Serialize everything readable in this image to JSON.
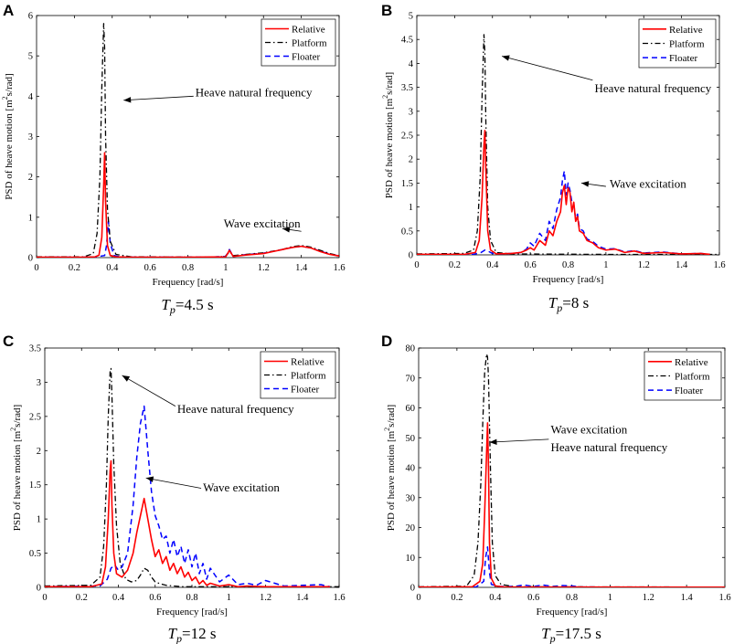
{
  "series_styles": {
    "Relative": {
      "color": "#ff0000",
      "dash": "",
      "width": 1.6
    },
    "Platform": {
      "color": "#000000",
      "dash": "6,3,1.5,3",
      "width": 1.3
    },
    "Floater": {
      "color": "#0000ff",
      "dash": "6,4",
      "width": 1.5
    }
  },
  "chart_data": [
    {
      "panel": "A",
      "type": "line",
      "caption_symbol": "T",
      "caption_sub": "p",
      "caption_value": "=4.5 s",
      "xlabel": "Frequency [rad/s]",
      "ylabel_pre": "PSD of heave motion [m",
      "ylabel_sup": "2",
      "ylabel_post": "s/rad]",
      "xlim": [
        0,
        1.6
      ],
      "ylim": [
        0,
        6
      ],
      "xticks": [
        0,
        0.2,
        0.4,
        0.6,
        0.8,
        1,
        1.2,
        1.4,
        1.6
      ],
      "yticks": [
        0,
        1,
        2,
        3,
        4,
        5,
        6
      ],
      "legend": [
        "Relative",
        "Platform",
        "Floater"
      ],
      "annotations": [
        {
          "text": "Heave natural frequency",
          "tx": 0.84,
          "ty": 4.0,
          "ax": 0.83,
          "ay": 4.0,
          "hx": 0.46,
          "hy": 3.9
        },
        {
          "text": "Wave excitation",
          "tx": 0.99,
          "ty": 0.75,
          "ax": 1.4,
          "ay": 0.65,
          "hx": 1.3,
          "hy": 0.72
        }
      ],
      "series": [
        {
          "name": "Relative",
          "x": [
            0,
            0.25,
            0.31,
            0.33,
            0.345,
            0.355,
            0.36,
            0.365,
            0.375,
            0.39,
            0.42,
            0.5,
            0.8,
            1.0,
            1.02,
            1.04,
            1.1,
            1.2,
            1.25,
            1.3,
            1.35,
            1.4,
            1.45,
            1.5,
            1.55,
            1.6
          ],
          "values": [
            0.01,
            0.01,
            0.02,
            0.06,
            0.5,
            1.8,
            2.6,
            1.4,
            0.3,
            0.05,
            0.02,
            0.01,
            0.01,
            0.02,
            0.18,
            0.03,
            0.06,
            0.1,
            0.15,
            0.2,
            0.25,
            0.28,
            0.24,
            0.15,
            0.08,
            0.04
          ]
        },
        {
          "name": "Platform",
          "x": [
            0,
            0.25,
            0.3,
            0.32,
            0.335,
            0.345,
            0.355,
            0.36,
            0.365,
            0.375,
            0.39,
            0.42,
            0.5,
            0.9,
            1.0,
            1.02,
            1.04,
            1.2,
            1.3,
            1.35,
            1.4,
            1.45,
            1.5,
            1.55,
            1.6
          ],
          "values": [
            0.02,
            0.02,
            0.1,
            0.6,
            2.0,
            4.2,
            5.8,
            5.2,
            3.0,
            1.2,
            0.4,
            0.08,
            0.02,
            0.01,
            0.03,
            0.15,
            0.05,
            0.12,
            0.2,
            0.27,
            0.3,
            0.26,
            0.18,
            0.1,
            0.05
          ]
        },
        {
          "name": "Floater",
          "x": [
            0,
            0.3,
            0.36,
            0.37,
            0.38,
            0.39,
            0.41,
            0.45,
            0.9,
            1.0,
            1.02,
            1.04,
            1.1,
            1.2,
            1.3,
            1.35,
            1.4,
            1.45,
            1.5,
            1.55,
            1.6
          ],
          "values": [
            0.01,
            0.01,
            0.05,
            0.3,
            0.9,
            0.35,
            0.05,
            0.01,
            0.01,
            0.03,
            0.2,
            0.03,
            0.07,
            0.11,
            0.2,
            0.25,
            0.28,
            0.24,
            0.16,
            0.09,
            0.04
          ]
        }
      ]
    },
    {
      "panel": "B",
      "type": "line",
      "caption_symbol": "T",
      "caption_sub": "p",
      "caption_value": "=8 s",
      "xlabel": "Frequency [rad/s]",
      "ylabel_pre": "PSD of heave motion [m",
      "ylabel_sup": "2",
      "ylabel_post": "s/rad]",
      "xlim": [
        0,
        1.6
      ],
      "ylim": [
        0,
        5
      ],
      "xticks": [
        0,
        0.2,
        0.4,
        0.6,
        0.8,
        1,
        1.2,
        1.4,
        1.6
      ],
      "yticks": [
        0,
        0.5,
        1,
        1.5,
        2,
        2.5,
        3,
        3.5,
        4,
        4.5,
        5
      ],
      "legend": [
        "Relative",
        "Platform",
        "Floater"
      ],
      "annotations": [
        {
          "text": "Heave natural frequency",
          "tx": 0.94,
          "ty": 3.4,
          "ax": 0.93,
          "ay": 3.65,
          "hx": 0.45,
          "hy": 4.15
        },
        {
          "text": "Wave excitation",
          "tx": 1.02,
          "ty": 1.4,
          "ax": 1.0,
          "ay": 1.43,
          "hx": 0.87,
          "hy": 1.5
        }
      ],
      "series": [
        {
          "name": "Relative",
          "x": [
            0,
            0.25,
            0.31,
            0.33,
            0.345,
            0.355,
            0.36,
            0.365,
            0.375,
            0.39,
            0.42,
            0.5,
            0.55,
            0.58,
            0.6,
            0.62,
            0.65,
            0.68,
            0.7,
            0.72,
            0.74,
            0.76,
            0.77,
            0.78,
            0.79,
            0.8,
            0.81,
            0.82,
            0.83,
            0.84,
            0.85,
            0.86,
            0.88,
            0.9,
            0.93,
            0.96,
            1.0,
            1.05,
            1.1,
            1.15,
            1.2,
            1.3,
            1.4,
            1.5,
            1.55
          ],
          "values": [
            0.01,
            0.01,
            0.05,
            0.3,
            1.2,
            2.3,
            2.6,
            1.8,
            0.5,
            0.1,
            0.02,
            0.03,
            0.05,
            0.1,
            0.15,
            0.1,
            0.3,
            0.2,
            0.5,
            0.4,
            0.7,
            0.9,
            1.3,
            1.45,
            1.05,
            1.4,
            1.3,
            0.9,
            1.1,
            0.7,
            0.8,
            0.5,
            0.45,
            0.3,
            0.25,
            0.15,
            0.1,
            0.12,
            0.05,
            0.08,
            0.03,
            0.05,
            0.02,
            0.03,
            0.01
          ]
        },
        {
          "name": "Platform",
          "x": [
            0,
            0.25,
            0.3,
            0.32,
            0.335,
            0.345,
            0.355,
            0.36,
            0.365,
            0.375,
            0.39,
            0.42,
            0.5,
            1.0,
            1.6
          ],
          "values": [
            0.02,
            0.03,
            0.1,
            0.5,
            1.6,
            3.3,
            4.6,
            4.2,
            2.8,
            1.0,
            0.3,
            0.05,
            0.02,
            0.01,
            0.01
          ]
        },
        {
          "name": "Floater",
          "x": [
            0,
            0.3,
            0.34,
            0.36,
            0.38,
            0.4,
            0.45,
            0.5,
            0.55,
            0.58,
            0.6,
            0.62,
            0.65,
            0.68,
            0.7,
            0.72,
            0.74,
            0.76,
            0.77,
            0.78,
            0.79,
            0.8,
            0.81,
            0.82,
            0.83,
            0.84,
            0.85,
            0.86,
            0.88,
            0.9,
            0.93,
            0.96,
            1.0,
            1.05,
            1.1,
            1.15,
            1.2,
            1.3,
            1.4,
            1.5,
            1.55
          ],
          "values": [
            0.01,
            0.01,
            0.05,
            0.1,
            0.07,
            0.03,
            0.02,
            0.03,
            0.05,
            0.12,
            0.25,
            0.18,
            0.45,
            0.3,
            0.7,
            0.55,
            0.95,
            1.2,
            1.55,
            1.75,
            1.25,
            1.5,
            1.35,
            1.1,
            1.05,
            0.75,
            0.85,
            0.55,
            0.5,
            0.33,
            0.28,
            0.18,
            0.12,
            0.13,
            0.06,
            0.09,
            0.04,
            0.06,
            0.02,
            0.03,
            0.01
          ]
        }
      ]
    },
    {
      "panel": "C",
      "type": "line",
      "caption_symbol": "T",
      "caption_sub": "p",
      "caption_value": "=12 s",
      "xlabel": "Frequency [rad/s]",
      "ylabel_pre": "PSD of heave motion [m",
      "ylabel_sup": "2",
      "ylabel_post": "s/rad]",
      "xlim": [
        0,
        1.6
      ],
      "ylim": [
        0,
        3.5
      ],
      "xticks": [
        0,
        0.2,
        0.4,
        0.6,
        0.8,
        1,
        1.2,
        1.4,
        1.6
      ],
      "yticks": [
        0,
        0.5,
        1,
        1.5,
        2,
        2.5,
        3,
        3.5
      ],
      "legend": [
        "Relative",
        "Platform",
        "Floater"
      ],
      "annotations": [
        {
          "text": "Heave natural frequency",
          "tx": 0.72,
          "ty": 2.55,
          "ax": 0.71,
          "ay": 2.65,
          "hx": 0.42,
          "hy": 3.1
        },
        {
          "text": "Wave excitation",
          "tx": 0.86,
          "ty": 1.4,
          "ax": 0.85,
          "ay": 1.45,
          "hx": 0.55,
          "hy": 1.6
        }
      ],
      "series": [
        {
          "name": "Relative",
          "x": [
            0,
            0.25,
            0.31,
            0.33,
            0.345,
            0.355,
            0.36,
            0.365,
            0.375,
            0.39,
            0.42,
            0.45,
            0.48,
            0.5,
            0.52,
            0.54,
            0.56,
            0.58,
            0.6,
            0.62,
            0.64,
            0.66,
            0.68,
            0.7,
            0.72,
            0.74,
            0.76,
            0.78,
            0.8,
            0.82,
            0.84,
            0.86,
            0.88,
            0.9,
            0.95,
            1.0,
            1.05,
            1.1,
            1.2,
            1.3,
            1.4,
            1.5,
            1.55
          ],
          "values": [
            0.01,
            0.01,
            0.05,
            0.3,
            1.0,
            1.7,
            1.85,
            1.2,
            0.5,
            0.2,
            0.15,
            0.25,
            0.5,
            0.8,
            1.05,
            1.3,
            1.0,
            0.7,
            0.45,
            0.55,
            0.35,
            0.45,
            0.25,
            0.35,
            0.2,
            0.3,
            0.15,
            0.22,
            0.1,
            0.15,
            0.05,
            0.1,
            0.03,
            0.06,
            0.02,
            0.04,
            0.01,
            0.02,
            0.01,
            0.01,
            0.01,
            0.01,
            0.01
          ]
        },
        {
          "name": "Platform",
          "x": [
            0,
            0.25,
            0.3,
            0.32,
            0.335,
            0.345,
            0.355,
            0.36,
            0.365,
            0.375,
            0.39,
            0.41,
            0.44,
            0.47,
            0.5,
            0.52,
            0.54,
            0.56,
            0.58,
            0.6,
            0.63,
            0.66,
            0.7,
            0.75,
            1.6
          ],
          "values": [
            0.02,
            0.03,
            0.15,
            0.6,
            1.5,
            2.5,
            3.15,
            3.2,
            2.8,
            1.8,
            0.9,
            0.35,
            0.12,
            0.08,
            0.1,
            0.18,
            0.28,
            0.25,
            0.15,
            0.08,
            0.05,
            0.03,
            0.02,
            0.01,
            0.01
          ]
        },
        {
          "name": "Floater",
          "x": [
            0,
            0.3,
            0.34,
            0.36,
            0.38,
            0.4,
            0.42,
            0.45,
            0.48,
            0.5,
            0.52,
            0.54,
            0.56,
            0.58,
            0.6,
            0.62,
            0.64,
            0.66,
            0.68,
            0.7,
            0.72,
            0.74,
            0.76,
            0.78,
            0.8,
            0.82,
            0.84,
            0.86,
            0.88,
            0.9,
            0.95,
            1.0,
            1.05,
            1.1,
            1.15,
            1.2,
            1.3,
            1.4,
            1.5,
            1.55
          ],
          "values": [
            0.01,
            0.02,
            0.12,
            0.28,
            0.33,
            0.25,
            0.3,
            0.5,
            1.2,
            1.9,
            2.4,
            2.65,
            2.0,
            1.4,
            1.05,
            0.9,
            0.7,
            0.75,
            0.5,
            0.7,
            0.45,
            0.6,
            0.35,
            0.55,
            0.3,
            0.5,
            0.2,
            0.35,
            0.12,
            0.28,
            0.08,
            0.18,
            0.04,
            0.06,
            0.03,
            0.1,
            0.02,
            0.03,
            0.04,
            0.01
          ]
        }
      ]
    },
    {
      "panel": "D",
      "type": "line",
      "caption_symbol": "T",
      "caption_sub": "p",
      "caption_value": "=17.5 s",
      "xlabel": "Frequency [rad/s]",
      "ylabel_pre": "PSD of heave motion [m",
      "ylabel_sup": "2",
      "ylabel_post": "s/rad]",
      "xlim": [
        0,
        1.6
      ],
      "ylim": [
        0,
        80
      ],
      "xticks": [
        0,
        0.2,
        0.4,
        0.6,
        0.8,
        1,
        1.2,
        1.4,
        1.6
      ],
      "yticks": [
        0,
        10,
        20,
        30,
        40,
        50,
        60,
        70,
        80
      ],
      "legend": [
        "Relative",
        "Platform",
        "Floater"
      ],
      "annotations": [
        {
          "text": "Wave excitation",
          "tx": 0.69,
          "ty": 51.5,
          "ax": 0.68,
          "ay": 49.5,
          "hx": 0.37,
          "hy": 48.5
        },
        {
          "text": "Heave natural frequency",
          "tx": 0.69,
          "ty": 45.5,
          "ax": null,
          "ay": null,
          "hx": null,
          "hy": null
        }
      ],
      "series": [
        {
          "name": "Relative",
          "x": [
            0,
            0.28,
            0.32,
            0.335,
            0.345,
            0.355,
            0.36,
            0.365,
            0.37,
            0.38,
            0.4,
            0.45,
            1.6
          ],
          "values": [
            0.1,
            0.2,
            2.0,
            8.0,
            25.0,
            45.0,
            55.0,
            40.0,
            15.0,
            3.0,
            0.5,
            0.1,
            0.05
          ]
        },
        {
          "name": "Platform",
          "x": [
            0,
            0.25,
            0.29,
            0.31,
            0.325,
            0.335,
            0.345,
            0.355,
            0.36,
            0.365,
            0.375,
            0.385,
            0.4,
            0.43,
            0.5,
            1.6
          ],
          "values": [
            0.2,
            0.4,
            4.0,
            15.0,
            35.0,
            55.0,
            72.0,
            78.0,
            77.0,
            70.0,
            40.0,
            15.0,
            4.0,
            1.0,
            0.2,
            0.1
          ]
        },
        {
          "name": "Floater",
          "x": [
            0,
            0.3,
            0.34,
            0.35,
            0.36,
            0.37,
            0.38,
            0.42,
            0.5,
            0.55,
            0.6,
            0.65,
            0.7,
            0.75,
            0.8,
            0.85,
            1.6
          ],
          "values": [
            0.05,
            0.1,
            2.0,
            10.0,
            13.5,
            5.0,
            1.0,
            0.3,
            0.3,
            0.8,
            0.3,
            0.8,
            0.3,
            0.6,
            0.5,
            0.1,
            0.05
          ]
        }
      ]
    }
  ]
}
